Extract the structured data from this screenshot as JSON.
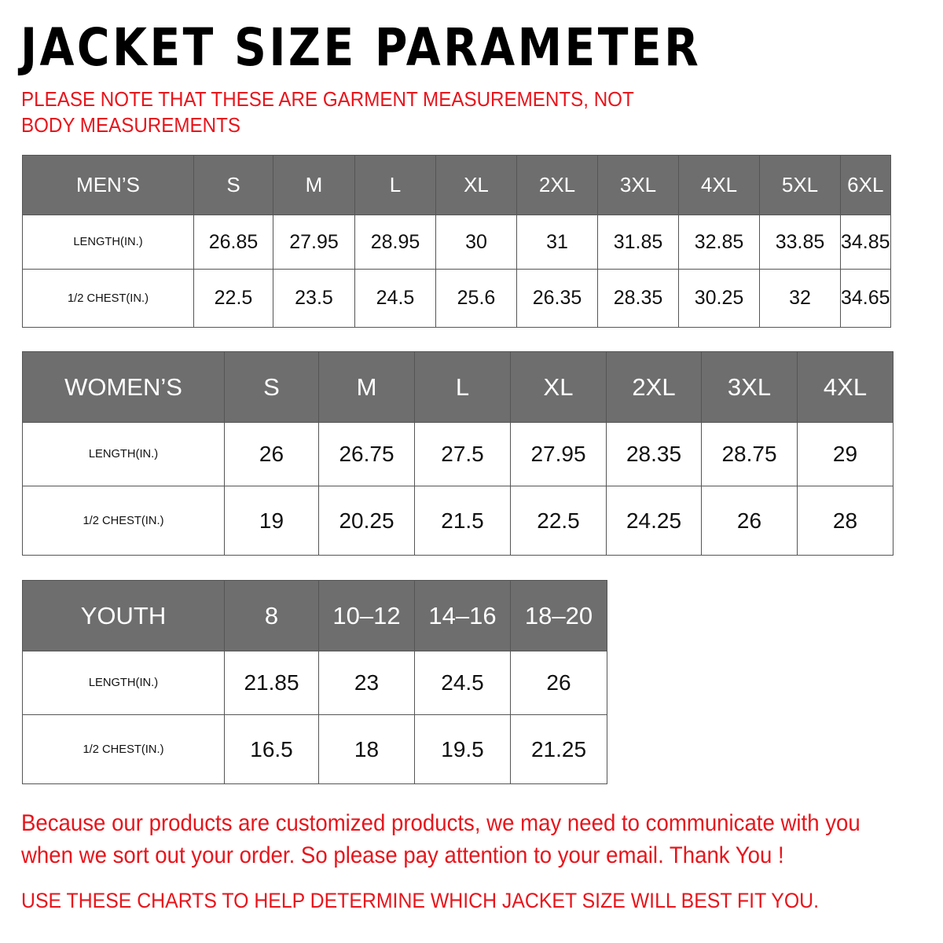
{
  "title": "JACKET SIZE PARAMETER",
  "note": "PLEASE NOTE THAT THESE ARE GARMENT MEASUREMENTS, NOT BODY MEASUREMENTS",
  "colors": {
    "header_bg": "#6e6e6e",
    "header_text": "#ffffff",
    "accent_red": "#e8141b"
  },
  "tables": {
    "men": {
      "header": "MEN’S",
      "sizes": [
        "S",
        "M",
        "L",
        "XL",
        "2XL",
        "3XL",
        "4XL",
        "5XL",
        "6XL"
      ],
      "rows": [
        {
          "label": "LENGTH(IN.)",
          "values": [
            "26.85",
            "27.95",
            "28.95",
            "30",
            "31",
            "31.85",
            "32.85",
            "33.85",
            "34.85"
          ]
        },
        {
          "label": "1/2 CHEST(IN.)",
          "values": [
            "22.5",
            "23.5",
            "24.5",
            "25.6",
            "26.35",
            "28.35",
            "30.25",
            "32",
            "34.65"
          ]
        }
      ]
    },
    "women": {
      "header": "WOMEN’S",
      "sizes": [
        "S",
        "M",
        "L",
        "XL",
        "2XL",
        "3XL",
        "4XL"
      ],
      "rows": [
        {
          "label": "LENGTH(IN.)",
          "values": [
            "26",
            "26.75",
            "27.5",
            "27.95",
            "28.35",
            "28.75",
            "29"
          ]
        },
        {
          "label": "1/2 CHEST(IN.)",
          "values": [
            "19",
            "20.25",
            "21.5",
            "22.5",
            "24.25",
            "26",
            "28"
          ]
        }
      ]
    },
    "youth": {
      "header": "YOUTH",
      "sizes": [
        "8",
        "10–12",
        "14–16",
        "18–20"
      ],
      "rows": [
        {
          "label": "LENGTH(IN.)",
          "values": [
            "21.85",
            "23",
            "24.5",
            "26"
          ]
        },
        {
          "label": "1/2 CHEST(IN.)",
          "values": [
            "16.5",
            "18",
            "19.5",
            "21.25"
          ]
        }
      ]
    }
  },
  "footer": {
    "line1": "Because our products are customized products, we may need to communicate with you",
    "line2": "when we sort out your order. So please pay attention to your email. Thank You !",
    "line3": "USE THESE CHARTS TO HELP DETERMINE WHICH JACKET SIZE WILL BEST FIT YOU."
  }
}
